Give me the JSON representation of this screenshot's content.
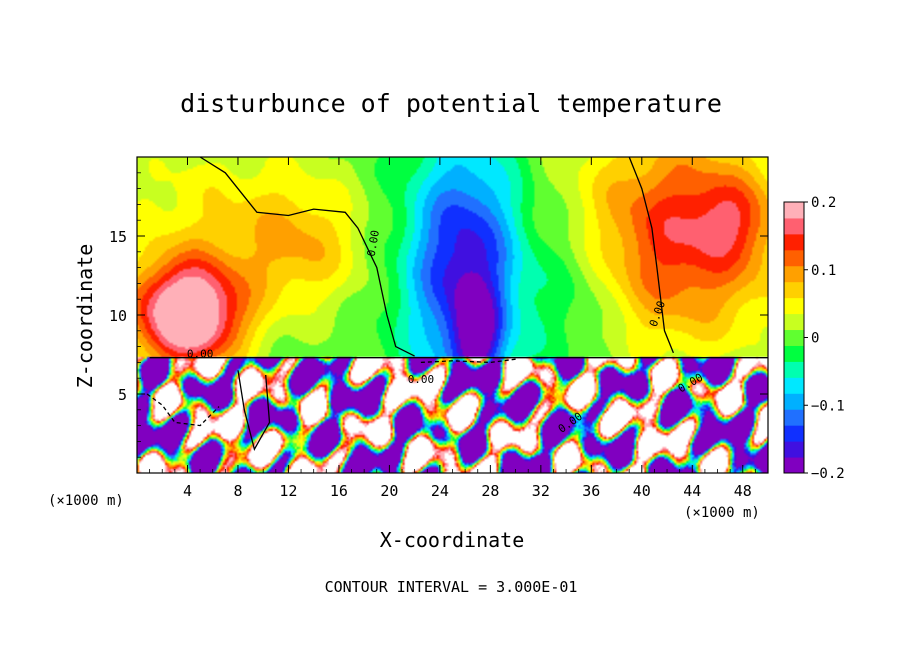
{
  "chart_data": {
    "type": "heatmap",
    "title": "disturbunce of potential temperature",
    "xlabel": "X-coordinate",
    "ylabel": "Z-coordinate",
    "x_unit_label": "(×1000 m)",
    "x_unit_label_right": "(×1000 m)",
    "xlim": [
      0,
      50
    ],
    "ylim": [
      0,
      20
    ],
    "xticks": [
      4,
      8,
      12,
      16,
      20,
      24,
      28,
      32,
      36,
      40,
      44,
      48
    ],
    "yticks": [
      5,
      10,
      15
    ],
    "colorbar": {
      "range": [
        -0.2,
        0.2
      ],
      "tick_labels": [
        "0.2",
        "0.1",
        "0",
        "−0.1",
        "−0.2"
      ],
      "tick_values": [
        0.2,
        0.1,
        0,
        -0.1,
        -0.2
      ],
      "colors": [
        "#8000c0",
        "#4010e0",
        "#1030ff",
        "#2070ff",
        "#00b0ff",
        "#00e8ff",
        "#00ffb0",
        "#00ff40",
        "#60ff30",
        "#c8ff20",
        "#ffff00",
        "#ffd000",
        "#ffa000",
        "#ff6000",
        "#ff2000",
        "#ff6070",
        "#ffb0b8"
      ]
    },
    "contour_label": "0.00",
    "footer": "CONTOUR INTERVAL = 3.000E-01",
    "fields": {
      "upper_background": -0.005,
      "upper_blobs": [
        {
          "x": 4,
          "z": 10,
          "sx": 4.5,
          "sz": 3.5,
          "value": 0.25
        },
        {
          "x": 26,
          "z": 13,
          "sx": 4.5,
          "sz": 7.5,
          "value": -0.17
        },
        {
          "x": 27,
          "z": 8.5,
          "sx": 1.8,
          "sz": 3.0,
          "value": -0.12
        },
        {
          "x": 43,
          "z": 15,
          "sx": 9,
          "sz": 7,
          "value": 0.15
        },
        {
          "x": 47,
          "z": 16,
          "sx": 3,
          "sz": 2.5,
          "value": 0.05
        },
        {
          "x": 6,
          "z": 17,
          "sx": 10,
          "sz": 5,
          "value": 0.05
        },
        {
          "x": 13,
          "z": 14,
          "sx": 5,
          "sz": 4,
          "value": 0.07
        },
        {
          "x": 35,
          "z": 12,
          "sx": 4,
          "sz": 5,
          "value": -0.05
        }
      ],
      "interface_z": 7.3
    }
  }
}
